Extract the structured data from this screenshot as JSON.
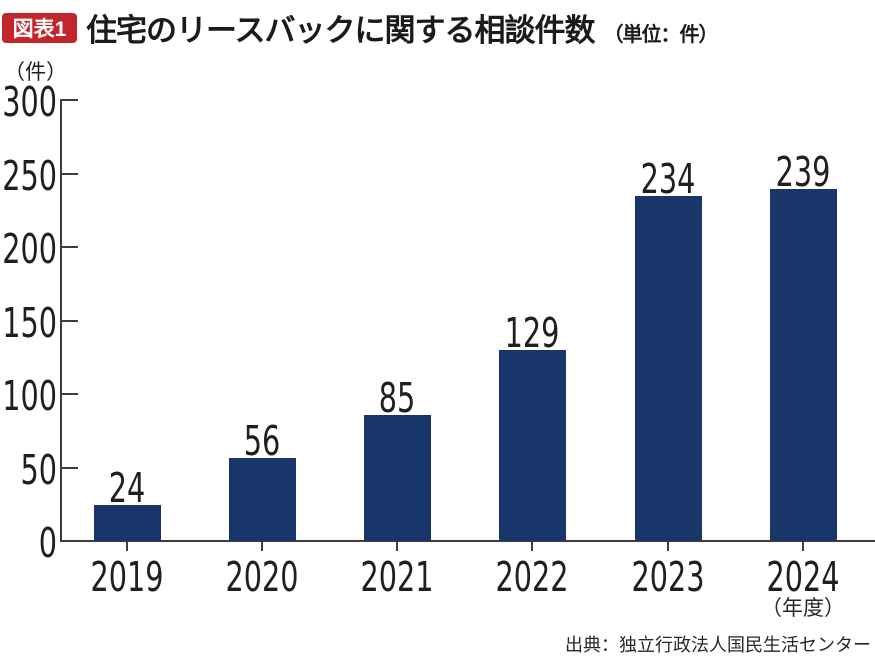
{
  "header": {
    "figure_label": "図表1",
    "title": "住宅のリースバックに関する相談件数",
    "title_unit": "（単位：件）"
  },
  "chart_data": {
    "type": "bar",
    "categories": [
      "2019",
      "2020",
      "2021",
      "2022",
      "2023",
      "2024"
    ],
    "values": [
      24,
      56,
      85,
      129,
      234,
      239
    ],
    "title": "住宅のリースバックに関する相談件数（単位：件）",
    "xlabel": "（年度）",
    "ylabel": "（件）",
    "ylim": [
      0,
      300
    ],
    "yticks": [
      0,
      50,
      100,
      150,
      200,
      250,
      300
    ],
    "grid": false,
    "legend": "none",
    "bar_color": "#18366a"
  },
  "footer": {
    "source": "出典：独立行政法人国民生活センター"
  },
  "colors": {
    "badge_bg": "#c2262c",
    "badge_text": "#ffffff",
    "bar": "#18366a",
    "text": "#221e1f",
    "axis": "#413b3d"
  }
}
